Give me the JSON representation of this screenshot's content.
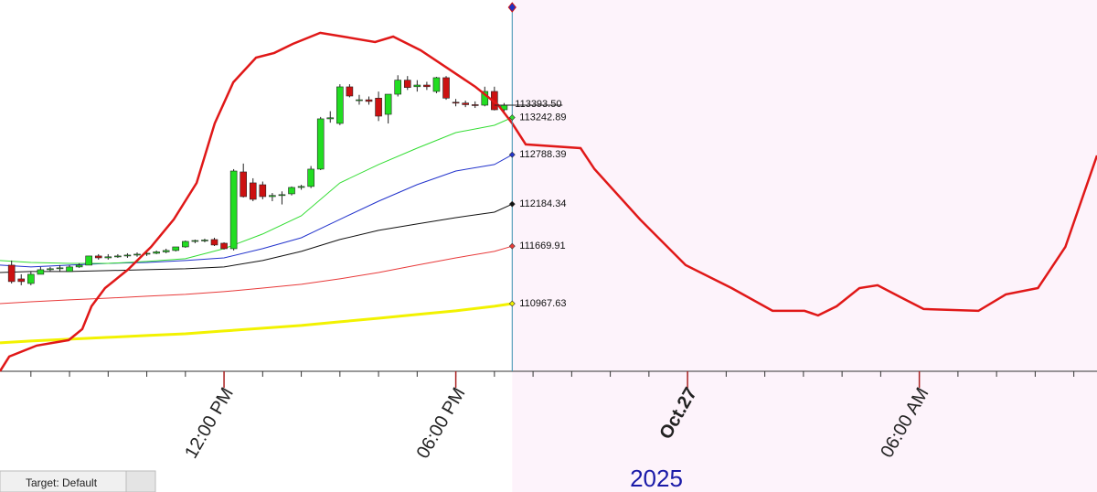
{
  "chart_data": {
    "type": "candlestick",
    "xlim": [
      -5.8,
      22.6
    ],
    "ylim": [
      110140,
      114680
    ],
    "xticks": [
      {
        "value": 0,
        "label": "12:00 PM"
      },
      {
        "value": 6,
        "label": "06:00 PM"
      },
      {
        "value": 12,
        "label": "Oct.27"
      },
      {
        "value": 18,
        "label": "06:00 AM"
      }
    ],
    "minor_tick_step": 1,
    "x_year_label": "2025",
    "cursor_x": 7.46,
    "status_text": "Target: Default",
    "up_color": "#22dd22",
    "down_color": "#cc1111",
    "candles": {
      "x": [
        -5.5,
        -5.25,
        -5,
        -4.75,
        -4.5,
        -4.25,
        -4,
        -3.75,
        -3.5,
        -3.25,
        -3,
        -2.75,
        -2.5,
        -2.25,
        -2,
        -1.75,
        -1.5,
        -1.25,
        -1,
        -0.75,
        -0.5,
        -0.25,
        0,
        0.25,
        0.5,
        0.75,
        1,
        1.25,
        1.5,
        1.75,
        2,
        2.25,
        2.5,
        2.75,
        3,
        3.25,
        3.5,
        3.75,
        4,
        4.25,
        4.5,
        4.75,
        5,
        5.25,
        5.5,
        5.75,
        6,
        6.25,
        6.5,
        6.75,
        7,
        7.25
      ],
      "open": [
        111438,
        111270,
        111214,
        111326,
        111382,
        111394,
        111360,
        111416,
        111438,
        111550,
        111527,
        111540,
        111550,
        111561,
        111572,
        111583,
        111600,
        111617,
        111661,
        111728,
        111739,
        111751,
        111706,
        111639,
        112578,
        112444,
        112421,
        112276,
        112290,
        112310,
        112388,
        112400,
        112612,
        113227,
        113171,
        113618,
        113450,
        113460,
        113480,
        113282,
        113528,
        113700,
        113620,
        113640,
        113562,
        113730,
        113430,
        113420,
        113400,
        113394,
        113562,
        113338
      ],
      "high": [
        111494,
        111326,
        111360,
        111416,
        111416,
        111438,
        111438,
        111460,
        111550,
        111572,
        111572,
        111572,
        111583,
        111594,
        111605,
        111617,
        111639,
        111661,
        111739,
        111750,
        111762,
        111773,
        111717,
        112612,
        112680,
        112500,
        112460,
        112320,
        112340,
        112400,
        112420,
        112650,
        113250,
        113320,
        113650,
        113650,
        113520,
        113500,
        113560,
        113520,
        113760,
        113750,
        113700,
        113680,
        113740,
        113750,
        113470,
        113450,
        113440,
        113620,
        113620,
        113420
      ],
      "low": [
        111214,
        111192,
        111192,
        111326,
        111360,
        111360,
        111360,
        111405,
        111438,
        111505,
        111505,
        111527,
        111527,
        111540,
        111550,
        111572,
        111583,
        111605,
        111650,
        111706,
        111717,
        111672,
        111628,
        111617,
        112265,
        112220,
        112243,
        112220,
        112180,
        112290,
        112360,
        112380,
        112600,
        113180,
        113150,
        113490,
        113400,
        113400,
        113200,
        113170,
        113500,
        113580,
        113560,
        113580,
        113540,
        113460,
        113380,
        113370,
        113360,
        113380,
        113330,
        113290
      ],
      "close": [
        111237,
        111237,
        111326,
        111382,
        111394,
        111405,
        111416,
        111438,
        111550,
        111527,
        111540,
        111550,
        111561,
        111572,
        111583,
        111600,
        111617,
        111661,
        111728,
        111739,
        111745,
        111684,
        111639,
        112589,
        112276,
        112243,
        112276,
        112290,
        112300,
        112388,
        112400,
        112612,
        113227,
        113240,
        113618,
        113506,
        113460,
        113440,
        113260,
        113528,
        113700,
        113610,
        113640,
        113620,
        113730,
        113480,
        113420,
        113400,
        113390,
        113562,
        113338,
        113393.5
      ]
    },
    "last_price": {
      "value": 113393.5,
      "label": "113393.50"
    },
    "ma_x": [
      -5.8,
      -5,
      -4,
      -3,
      -2,
      -1,
      0,
      1,
      2,
      3,
      4,
      5,
      6,
      7,
      7.46
    ],
    "series": [
      {
        "color": "#33dd33",
        "width": 1,
        "values": [
          111494,
          111471,
          111460,
          111460,
          111483,
          111516,
          111639,
          111818,
          112041,
          112444,
          112668,
          112869,
          113059,
          113148,
          113242.89
        ]
      },
      {
        "color": "#2233cc",
        "width": 1,
        "values": [
          111438,
          111416,
          111438,
          111460,
          111471,
          111494,
          111527,
          111639,
          111773,
          111997,
          112220,
          112422,
          112589,
          112668,
          112788.39
        ]
      },
      {
        "color": "#111111",
        "width": 1,
        "values": [
          111348,
          111360,
          111360,
          111371,
          111382,
          111393,
          111416,
          111494,
          111606,
          111751,
          111863,
          111941,
          112019,
          112086,
          112184.34
        ]
      },
      {
        "color": "#e83a3a",
        "width": 1,
        "values": [
          110968,
          110990,
          111013,
          111035,
          111058,
          111080,
          111114,
          111158,
          111203,
          111270,
          111348,
          111438,
          111527,
          111606,
          111669.91
        ]
      },
      {
        "color": "#f2f200",
        "width": 3,
        "values": [
          110488,
          110510,
          110532,
          110555,
          110577,
          110599,
          110633,
          110667,
          110700,
          110745,
          110789,
          110834,
          110879,
          110935,
          110967.63
        ]
      }
    ],
    "forecast": {
      "color": "#e01818",
      "width": 2.5,
      "x": [
        -5.8,
        -5.56,
        -4.85,
        -4.02,
        -3.67,
        -3.43,
        -3.08,
        -2.49,
        -1.89,
        -1.3,
        -0.71,
        -0.24,
        0.24,
        0.83,
        1.3,
        1.78,
        2.49,
        3.08,
        3.91,
        4.38,
        5.09,
        5.8,
        6.51,
        7.1,
        7.46,
        7.81,
        9.23,
        9.59,
        10.77,
        11.95,
        13.14,
        14.2,
        15.03,
        15.38,
        15.86,
        16.45,
        16.92,
        17.51,
        18.11,
        19.53,
        20.24,
        21.07,
        21.78,
        22.6
      ],
      "values": [
        110141,
        110320,
        110454,
        110521,
        110655,
        110935,
        111158,
        111382,
        111661,
        111997,
        112444,
        113171,
        113674,
        113976,
        114032,
        114143,
        114278,
        114233,
        114166,
        114233,
        114065,
        113842,
        113618,
        113394,
        113171,
        112914,
        112869,
        112612,
        111997,
        111438,
        111158,
        110879,
        110879,
        110823,
        110935,
        111158,
        111192,
        111047,
        110901,
        110879,
        111080,
        111158,
        111661,
        112779
      ]
    }
  }
}
